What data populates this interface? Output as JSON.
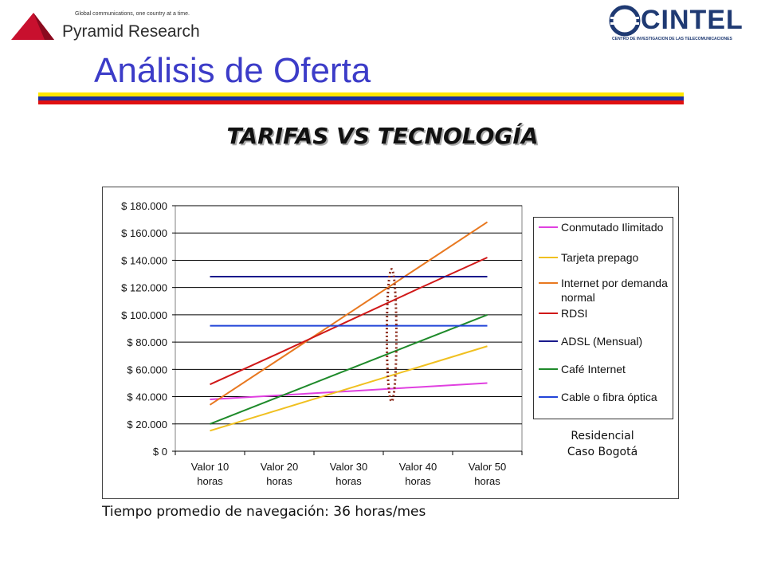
{
  "header": {
    "left_logo": {
      "tagline": "Global communications, one country at a time.",
      "brand": "Pyramid Research"
    },
    "right_logo": {
      "brand": "CINTEL",
      "subtitle": "CENTRO DE INVESTIGACION DE LAS TELECOMUNICACIONES"
    },
    "title": "Análisis de Oferta",
    "flag_colors": [
      "#ffe600",
      "#1c2fa0",
      "#e01010"
    ]
  },
  "subtitle": "TARIFAS VS TECNOLOGÍA",
  "chart_data": {
    "type": "line",
    "title": "",
    "xlabel": "",
    "ylabel": "",
    "categories": [
      "Valor 10 horas",
      "Valor 20 horas",
      "Valor 30 horas",
      "Valor 40 horas",
      "Valor 50 horas"
    ],
    "ylim": [
      0,
      180000
    ],
    "yticks": [
      "$ 0",
      "$ 20.000",
      "$ 40.000",
      "$ 60.000",
      "$ 80.000",
      "$ 100.000",
      "$ 120.000",
      "$ 140.000",
      "$ 160.000",
      "$ 180.000"
    ],
    "grid": true,
    "legend_position": "right",
    "series": [
      {
        "name": "Conmutado Ilimitado",
        "color": "#e040e0",
        "values": [
          38000,
          41000,
          44000,
          47000,
          50000
        ]
      },
      {
        "name": "Tarjeta prepago",
        "color": "#f0c020",
        "values": [
          15000,
          30500,
          46000,
          61500,
          77000
        ]
      },
      {
        "name": "Internet por demanda normal",
        "color": "#e87820",
        "values": [
          34000,
          67500,
          101000,
          134500,
          168000
        ]
      },
      {
        "name": "RDSI",
        "color": "#d01818",
        "values": [
          49000,
          72000,
          95500,
          119000,
          142000
        ]
      },
      {
        "name": "ADSL (Mensual)",
        "color": "#1a1a8c",
        "values": [
          128000,
          128000,
          128000,
          128000,
          128000
        ]
      },
      {
        "name": "Café Internet",
        "color": "#1e8a2a",
        "values": [
          20000,
          40000,
          60000,
          80000,
          100000
        ]
      },
      {
        "name": "Cable o fibra óptica",
        "color": "#2244d8",
        "values": [
          92000,
          92000,
          92000,
          92000,
          92000
        ]
      }
    ],
    "highlight_ellipse_color": "#8b2a1a"
  },
  "note": {
    "line1": "Residencial",
    "line2": "Caso Bogotá"
  },
  "footnote": "Tiempo promedio de navegación: 36 horas/mes"
}
